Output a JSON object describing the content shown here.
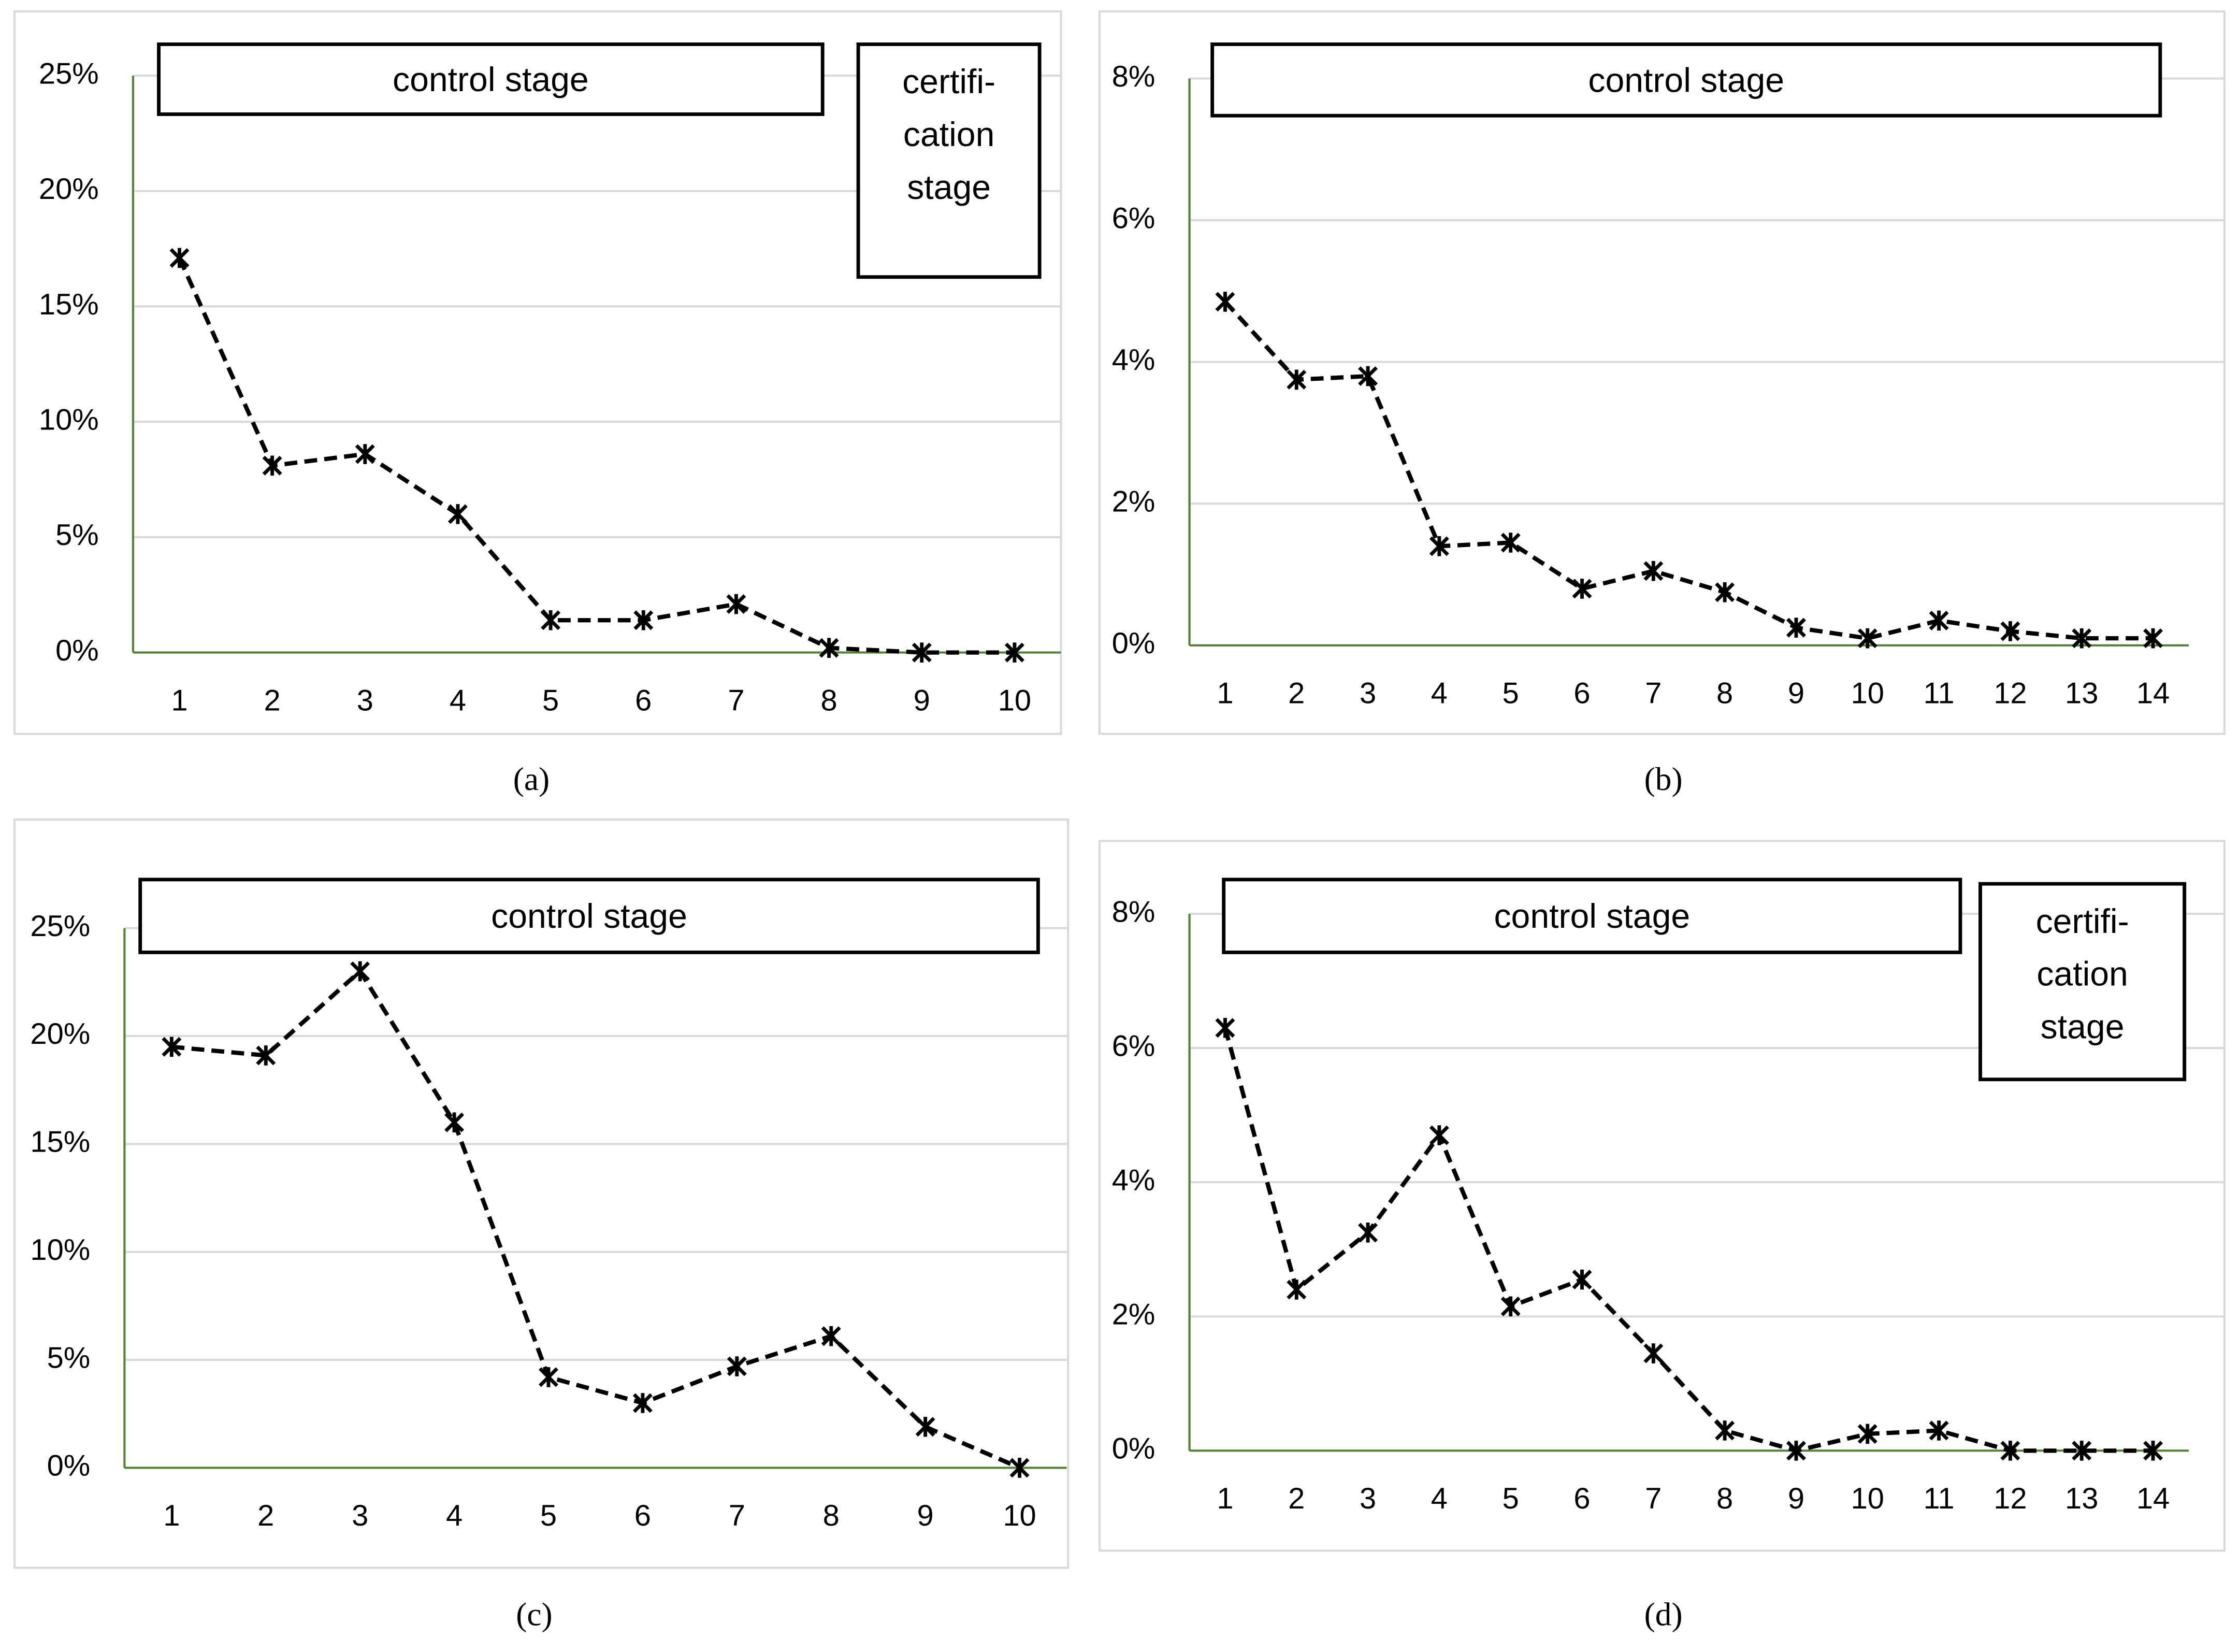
{
  "chart_data": [
    {
      "type": "line",
      "caption": "(a)",
      "categories": [
        "1",
        "2",
        "3",
        "4",
        "5",
        "6",
        "7",
        "8",
        "9",
        "10"
      ],
      "values": [
        17.1,
        8.1,
        8.6,
        6.0,
        1.4,
        1.4,
        2.1,
        0.2,
        0,
        0
      ],
      "color": "#000000",
      "ylim": [
        0,
        25
      ],
      "yticks": [
        {
          "value": 0,
          "label": "0%"
        },
        {
          "value": 5,
          "label": "5%"
        },
        {
          "value": 10,
          "label": "10%"
        },
        {
          "value": 15,
          "label": "15%"
        },
        {
          "value": 20,
          "label": "20%"
        },
        {
          "value": 25,
          "label": "25%"
        }
      ],
      "grid": true,
      "axis_color": "#548235",
      "annotations": [
        {
          "text": "control  stage"
        },
        {
          "lines": [
            "certifi-",
            "cation",
            "stage"
          ]
        }
      ]
    },
    {
      "type": "line",
      "caption": "(b)",
      "categories": [
        "1",
        "2",
        "3",
        "4",
        "5",
        "6",
        "7",
        "8",
        "9",
        "10",
        "11",
        "12",
        "13",
        "14"
      ],
      "values": [
        4.85,
        3.75,
        3.8,
        1.4,
        1.45,
        0.8,
        1.05,
        0.75,
        0.25,
        0.1,
        0.35,
        0.2,
        0.1,
        0.1
      ],
      "color": "#000000",
      "ylim": [
        0,
        8
      ],
      "yticks": [
        {
          "value": 0,
          "label": "0%"
        },
        {
          "value": 2,
          "label": "2%"
        },
        {
          "value": 4,
          "label": "4%"
        },
        {
          "value": 6,
          "label": "6%"
        },
        {
          "value": 8,
          "label": "8%"
        }
      ],
      "grid": true,
      "axis_color": "#548235",
      "annotations": [
        {
          "text": "control  stage"
        }
      ]
    },
    {
      "type": "line",
      "caption": "(c)",
      "categories": [
        "1",
        "2",
        "3",
        "4",
        "5",
        "6",
        "7",
        "8",
        "9",
        "10"
      ],
      "values": [
        19.5,
        19.1,
        23.0,
        16.0,
        4.2,
        3.0,
        4.7,
        6.1,
        1.9,
        0
      ],
      "color": "#000000",
      "ylim": [
        0,
        25
      ],
      "yticks": [
        {
          "value": 0,
          "label": "0%"
        },
        {
          "value": 5,
          "label": "5%"
        },
        {
          "value": 10,
          "label": "10%"
        },
        {
          "value": 15,
          "label": "15%"
        },
        {
          "value": 20,
          "label": "20%"
        },
        {
          "value": 25,
          "label": "25%"
        }
      ],
      "grid": true,
      "axis_color": "#548235",
      "annotations": [
        {
          "text": "control  stage"
        }
      ]
    },
    {
      "type": "line",
      "caption": "(d)",
      "categories": [
        "1",
        "2",
        "3",
        "4",
        "5",
        "6",
        "7",
        "8",
        "9",
        "10",
        "11",
        "12",
        "13",
        "14"
      ],
      "values": [
        6.3,
        2.4,
        3.25,
        4.7,
        2.15,
        2.55,
        1.45,
        0.3,
        0,
        0.25,
        0.3,
        0,
        0,
        0
      ],
      "color": "#000000",
      "ylim": [
        0,
        8
      ],
      "yticks": [
        {
          "value": 0,
          "label": "0%"
        },
        {
          "value": 2,
          "label": "2%"
        },
        {
          "value": 4,
          "label": "4%"
        },
        {
          "value": 6,
          "label": "6%"
        },
        {
          "value": 8,
          "label": "8%"
        }
      ],
      "grid": true,
      "axis_color": "#548235",
      "annotations": [
        {
          "text": "control  stage"
        },
        {
          "lines": [
            "certifi-",
            "cation",
            "stage"
          ]
        }
      ]
    }
  ]
}
